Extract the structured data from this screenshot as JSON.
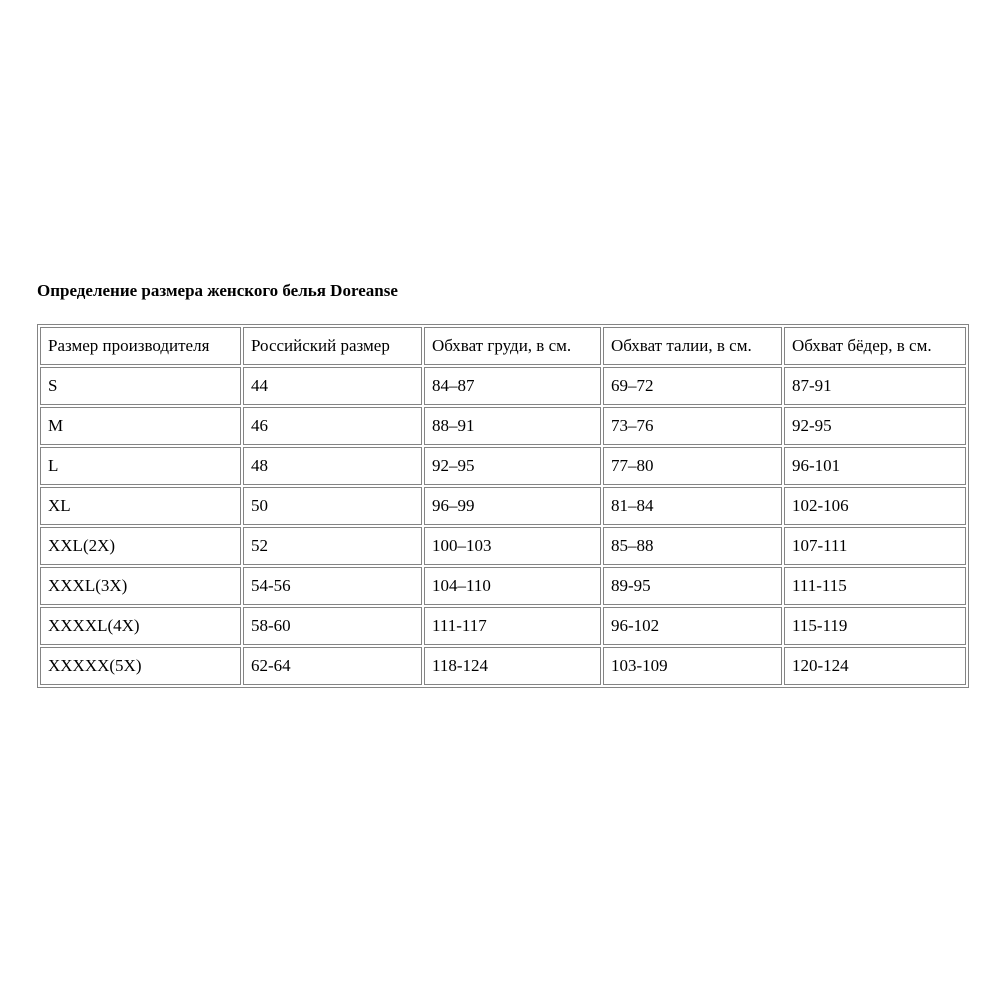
{
  "page": {
    "background_color": "#ffffff",
    "text_color": "#000000",
    "border_color": "#848484"
  },
  "title": "Определение размера женского белья Doreanse",
  "table": {
    "columns": [
      "Размер производителя",
      "Российский размер",
      "Обхват груди, в см.",
      "Обхват талии, в см.",
      "Обхват бёдер, в см."
    ],
    "rows": [
      [
        "S",
        "44",
        "84–87",
        "69–72",
        "87-91"
      ],
      [
        "M",
        "46",
        "88–91",
        "73–76",
        "92-95"
      ],
      [
        "L",
        "48",
        "92–95",
        "77–80",
        "96-101"
      ],
      [
        "XL",
        "50",
        "96–99",
        "81–84",
        "102-106"
      ],
      [
        "XXL(2X)",
        "52",
        "100–103",
        "85–88",
        "107-111"
      ],
      [
        "XXXL(3X)",
        "54-56",
        "104–110",
        "89-95",
        "111-115"
      ],
      [
        "XXXXL(4X)",
        "58-60",
        "111-117",
        "96-102",
        "115-119"
      ],
      [
        "XXXXX(5X)",
        "62-64",
        "118-124",
        "103-109",
        "120-124"
      ]
    ]
  }
}
